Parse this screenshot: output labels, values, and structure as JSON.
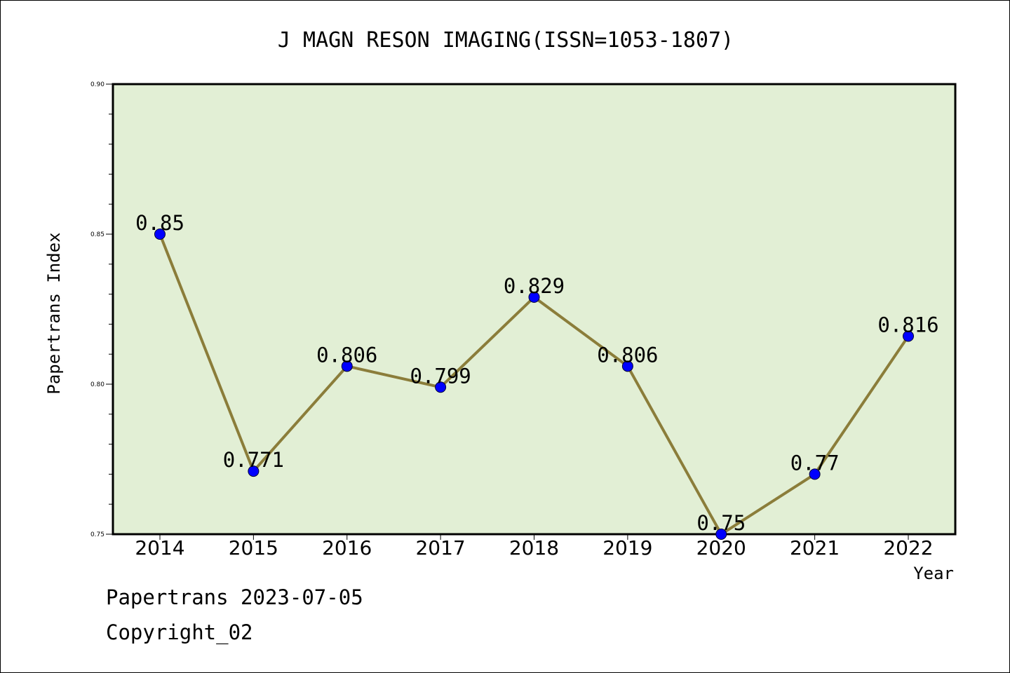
{
  "chart_data": {
    "type": "line",
    "title": "J MAGN RESON IMAGING(ISSN=1053-1807)",
    "xlabel": "Year",
    "ylabel": "Papertrans Index",
    "categories": [
      "2014",
      "2015",
      "2016",
      "2017",
      "2018",
      "2019",
      "2020",
      "2021",
      "2022"
    ],
    "series": [
      {
        "values": [
          0.85,
          0.771,
          0.806,
          0.799,
          0.829,
          0.806,
          0.75,
          0.77,
          0.816
        ]
      }
    ],
    "data_labels": [
      "0.85",
      "0.771",
      "0.806",
      "0.799",
      "0.829",
      "0.806",
      "0.75",
      "0.77",
      "0.816"
    ],
    "ylim": [
      0.75,
      0.9
    ],
    "yticks": [
      "0.75",
      "0.80",
      "0.85",
      "0.90"
    ],
    "grid": false,
    "colors": {
      "plot_background": "#e2efd5",
      "line": "#8b7d3a",
      "marker": "#0000ff"
    }
  },
  "footer": {
    "line1": "Papertrans 2023-07-05",
    "line2": "Copyright_02"
  }
}
